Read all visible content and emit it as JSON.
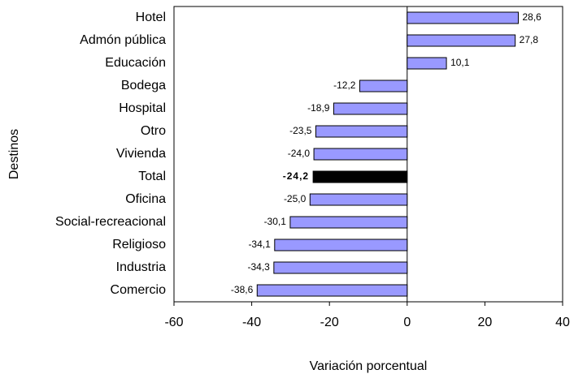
{
  "chart_data": {
    "type": "barh",
    "ylabel": "Destinos",
    "xlabel": "Variación porcentual",
    "categories": [
      "Hotel",
      "Admón pública",
      "Educación",
      "Bodega",
      "Hospital",
      "Otro",
      "Vivienda",
      "Total",
      "Oficina",
      "Social-recreacional",
      "Religioso",
      "Industria",
      "Comercio"
    ],
    "values": [
      28.6,
      27.8,
      10.1,
      -12.2,
      -18.9,
      -23.5,
      -24.0,
      -24.2,
      -25.0,
      -30.1,
      -34.1,
      -34.3,
      -38.6
    ],
    "value_labels": [
      "28,6",
      "27,8",
      "10,1",
      "-12,2",
      "-18,9",
      "-23,5",
      "-24,0",
      "-24,2",
      "-25,0",
      "-30,1",
      "-34,1",
      "-34,3",
      "-38,6"
    ],
    "colors": [
      "#9999ff",
      "#9999ff",
      "#9999ff",
      "#9999ff",
      "#9999ff",
      "#9999ff",
      "#9999ff",
      "#000000",
      "#9999ff",
      "#9999ff",
      "#9999ff",
      "#9999ff",
      "#9999ff"
    ],
    "xlim": [
      -60,
      40
    ],
    "xticks": [
      -60,
      -40,
      -20,
      0,
      20,
      40
    ]
  }
}
